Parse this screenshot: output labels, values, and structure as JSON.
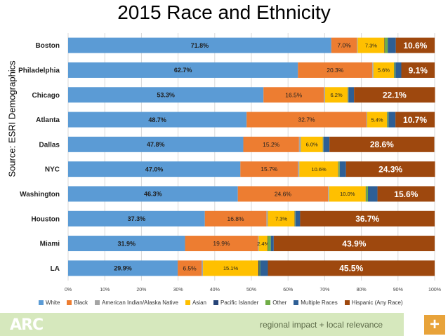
{
  "chart_data": {
    "type": "bar",
    "orientation": "horizontal",
    "stacked": true,
    "title": "2015 Race and Ethnicity",
    "ylabel": "Source: ESRI Demographics",
    "xlim": [
      0,
      100
    ],
    "x_ticks": [
      "0%",
      "10%",
      "20%",
      "30%",
      "40%",
      "50%",
      "60%",
      "70%",
      "80%",
      "90%",
      "100%"
    ],
    "grid": true,
    "legend_position": "bottom",
    "categories": [
      "Boston",
      "Philadelphia",
      "Chicago",
      "Atlanta",
      "Dallas",
      "NYC",
      "Washington",
      "Houston",
      "Miami",
      "LA"
    ],
    "series": [
      {
        "name": "White",
        "color": "#5b9bd5",
        "values": [
          71.8,
          62.7,
          53.3,
          48.7,
          47.8,
          47.0,
          46.3,
          37.3,
          31.9,
          29.9
        ],
        "labels": [
          "71.8%",
          "62.7%",
          "53.3%",
          "48.7%",
          "47.8%",
          "47.0%",
          "46.3%",
          "37.3%",
          "31.9%",
          "29.9%"
        ]
      },
      {
        "name": "Black",
        "color": "#ed7d31",
        "values": [
          7.0,
          20.3,
          16.5,
          32.7,
          15.2,
          15.7,
          24.6,
          16.8,
          19.9,
          6.5
        ],
        "labels": [
          "7.0%",
          "20.3%",
          "16.5%",
          "32.7%",
          "15.2%",
          "15.7%",
          "24.6%",
          "16.8%",
          "19.9%",
          "6.5%"
        ]
      },
      {
        "name": "American Indian/Alaska Native",
        "color": "#a5a5a5",
        "values": [
          0.2,
          0.3,
          0.3,
          0.2,
          0.5,
          0.4,
          0.3,
          0.4,
          0.2,
          0.4
        ],
        "labels": [
          "",
          "",
          "",
          "",
          "",
          "",
          "",
          "",
          "",
          ""
        ]
      },
      {
        "name": "Asian",
        "color": "#ffc000",
        "values": [
          7.3,
          5.6,
          6.2,
          5.4,
          6.0,
          10.6,
          10.0,
          7.3,
          2.4,
          15.1
        ],
        "labels": [
          "7.3%",
          "5.6%",
          "6.2%",
          "5.4%",
          "6.0%",
          "10.6%",
          "10.0%",
          "7.3%",
          "2.4%",
          "15.1%"
        ]
      },
      {
        "name": "Pacific Islander",
        "color": "#264478",
        "values": [
          0.1,
          0.1,
          0.1,
          0.1,
          0.1,
          0.1,
          0.1,
          0.1,
          0.1,
          0.3
        ],
        "labels": [
          "",
          "",
          "",
          "",
          "",
          "",
          "",
          "",
          "",
          ""
        ]
      },
      {
        "name": "Other",
        "color": "#70ad47",
        "values": [
          0.8,
          0.3,
          0.1,
          0.3,
          0.1,
          0.3,
          0.5,
          0.1,
          0.8,
          0.2
        ],
        "labels": [
          "",
          "",
          "",
          "",
          "",
          "",
          "",
          "",
          "",
          ""
        ]
      },
      {
        "name": "Multiple Races",
        "color": "#2e5f95",
        "values": [
          2.2,
          1.6,
          1.5,
          1.9,
          1.6,
          1.7,
          2.6,
          1.3,
          0.8,
          2.1
        ],
        "labels": [
          "",
          "",
          "",
          "",
          "",
          "",
          "",
          "",
          "",
          ""
        ]
      },
      {
        "name": "Hispanic (Any Race)",
        "color": "#9e480e",
        "values": [
          10.6,
          9.1,
          22.1,
          10.7,
          28.6,
          24.3,
          15.6,
          36.7,
          43.9,
          45.5
        ],
        "labels": [
          "10.6%",
          "9.1%",
          "22.1%",
          "10.7%",
          "28.6%",
          "24.3%",
          "15.6%",
          "36.7%",
          "43.9%",
          "45.5%"
        ]
      }
    ]
  },
  "footer": {
    "logo_text": "ARC",
    "tagline": "regional impact + local relevance",
    "plus_symbol": "+",
    "band_color": "#d6e8bd",
    "accent_color": "#e8a33a"
  }
}
